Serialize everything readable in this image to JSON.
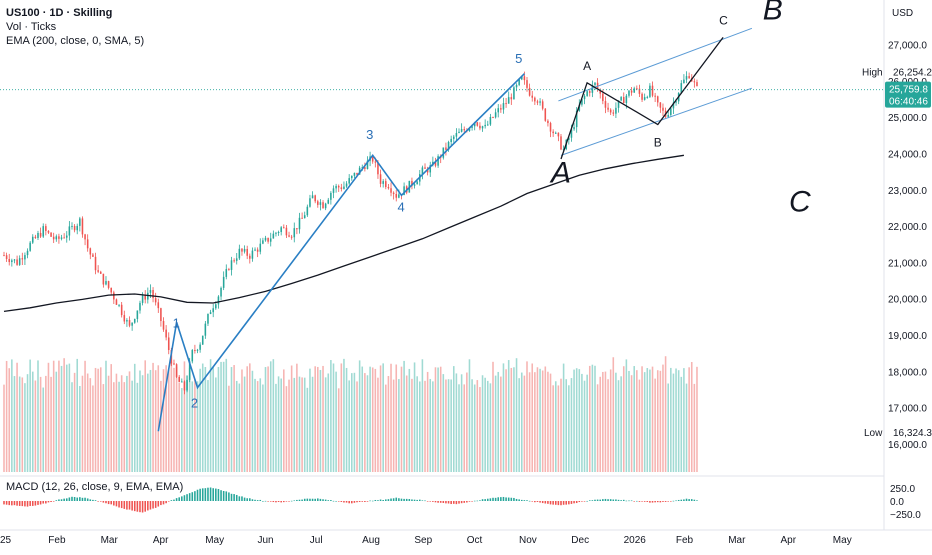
{
  "chart_data": {
    "type": "candlestick",
    "symbol_title": "US100 · 1D · Skilling",
    "volume_legend": "Vol · Ticks",
    "ema_legend": "EMA (200, close, 0, SMA, 5)",
    "macd_legend": "MACD (12, 26, close, 9, EMA, EMA)",
    "currency": "USD",
    "price_range": [
      15500,
      27900
    ],
    "price_ticks": [
      "27,000.0",
      "26,000.0",
      "25,000.0",
      "24,000.0",
      "23,000.0",
      "22,000.0",
      "21,000.0",
      "20,000.0",
      "19,000.0",
      "18,000.0",
      "17,000.0",
      "16,000.0"
    ],
    "price_tick_values": [
      27000,
      26000,
      25000,
      24000,
      23000,
      22000,
      21000,
      20000,
      19000,
      18000,
      17000,
      16000
    ],
    "macd_ticks": [
      "250.0",
      "0.0",
      "−250.0"
    ],
    "macd_tick_values": [
      250,
      0,
      -250
    ],
    "time_labels": [
      "25",
      "Feb",
      "Mar",
      "Apr",
      "May",
      "Jun",
      "Jul",
      "Aug",
      "Sep",
      "Oct",
      "Nov",
      "Dec",
      "2026",
      "Feb",
      "Mar",
      "Apr",
      "May"
    ],
    "time_label_months": [
      0,
      1,
      2,
      3,
      4,
      5,
      6,
      7,
      8,
      9,
      10,
      11,
      12,
      13,
      14,
      15,
      16
    ],
    "high_label": "High",
    "high_value": "26,254.2",
    "low_label": "Low",
    "low_value": "16,324.3",
    "last_price": "25,759.8",
    "countdown": "06:40:46",
    "price_path": [
      [
        0.0,
        21200
      ],
      [
        0.25,
        21000
      ],
      [
        0.5,
        21500
      ],
      [
        0.75,
        21900
      ],
      [
        1.0,
        21600
      ],
      [
        1.2,
        21800
      ],
      [
        1.45,
        22150
      ],
      [
        1.6,
        21400
      ],
      [
        1.8,
        20700
      ],
      [
        2.0,
        20300
      ],
      [
        2.2,
        19800
      ],
      [
        2.4,
        19200
      ],
      [
        2.6,
        19900
      ],
      [
        2.8,
        20250
      ],
      [
        3.0,
        19400
      ],
      [
        3.15,
        18600
      ],
      [
        3.3,
        17800
      ],
      [
        3.45,
        17500
      ],
      [
        3.6,
        18500
      ],
      [
        3.75,
        18800
      ],
      [
        3.95,
        19700
      ],
      [
        4.1,
        20100
      ],
      [
        4.3,
        20900
      ],
      [
        4.5,
        21300
      ],
      [
        4.7,
        21200
      ],
      [
        4.9,
        21450
      ],
      [
        5.1,
        21700
      ],
      [
        5.3,
        21950
      ],
      [
        5.5,
        21800
      ],
      [
        5.7,
        22200
      ],
      [
        5.9,
        22800
      ],
      [
        6.1,
        22600
      ],
      [
        6.3,
        23050
      ],
      [
        6.5,
        23100
      ],
      [
        6.7,
        23400
      ],
      [
        6.9,
        23700
      ],
      [
        7.05,
        23850
      ],
      [
        7.2,
        23250
      ],
      [
        7.35,
        23150
      ],
      [
        7.5,
        22850
      ],
      [
        7.7,
        23050
      ],
      [
        7.85,
        23250
      ],
      [
        8.0,
        23500
      ],
      [
        8.2,
        23650
      ],
      [
        8.4,
        24050
      ],
      [
        8.6,
        24450
      ],
      [
        8.8,
        24650
      ],
      [
        9.0,
        24900
      ],
      [
        9.2,
        24700
      ],
      [
        9.4,
        25100
      ],
      [
        9.6,
        25400
      ],
      [
        9.75,
        25700
      ],
      [
        9.9,
        26050
      ],
      [
        10.05,
        25700
      ],
      [
        10.2,
        25500
      ],
      [
        10.35,
        25000
      ],
      [
        10.5,
        24600
      ],
      [
        10.7,
        24100
      ],
      [
        10.85,
        24600
      ],
      [
        11.0,
        25300
      ],
      [
        11.15,
        25700
      ],
      [
        11.3,
        25900
      ],
      [
        11.45,
        25500
      ],
      [
        11.6,
        25100
      ],
      [
        11.75,
        25350
      ],
      [
        11.9,
        25600
      ],
      [
        12.05,
        25800
      ],
      [
        12.2,
        25550
      ],
      [
        12.35,
        25750
      ],
      [
        12.5,
        25300
      ],
      [
        12.65,
        25050
      ],
      [
        12.8,
        25400
      ],
      [
        12.95,
        25900
      ],
      [
        13.1,
        26200
      ],
      [
        13.25,
        25760
      ]
    ],
    "ema200_path": [
      [
        0.0,
        19650
      ],
      [
        0.5,
        19750
      ],
      [
        1.0,
        19880
      ],
      [
        1.5,
        19980
      ],
      [
        2.0,
        20100
      ],
      [
        2.5,
        20130
      ],
      [
        3.0,
        20050
      ],
      [
        3.5,
        19900
      ],
      [
        4.0,
        19880
      ],
      [
        4.5,
        20030
      ],
      [
        5.0,
        20200
      ],
      [
        5.5,
        20420
      ],
      [
        6.0,
        20650
      ],
      [
        6.5,
        20900
      ],
      [
        7.0,
        21150
      ],
      [
        7.5,
        21400
      ],
      [
        8.0,
        21650
      ],
      [
        8.5,
        21950
      ],
      [
        9.0,
        22250
      ],
      [
        9.5,
        22550
      ],
      [
        10.0,
        22900
      ],
      [
        10.5,
        23150
      ],
      [
        11.0,
        23400
      ],
      [
        11.5,
        23580
      ],
      [
        12.0,
        23720
      ],
      [
        12.5,
        23840
      ],
      [
        13.0,
        23950
      ]
    ],
    "waves_primary": [
      {
        "label": "1",
        "t": 3.3,
        "p": 19200,
        "at_t": 3.3,
        "at_p": 19350
      },
      {
        "label": "2",
        "t": 3.65,
        "p": 17000,
        "at_t": 3.7,
        "at_p": 17550
      },
      {
        "label": "3",
        "t": 7.0,
        "p": 24400,
        "at_t": 7.05,
        "at_p": 23950
      },
      {
        "label": "4",
        "t": 7.6,
        "p": 22400,
        "at_t": 7.6,
        "at_p": 22850
      },
      {
        "label": "5",
        "t": 9.85,
        "p": 26500,
        "at_t": 9.95,
        "at_p": 26200
      }
    ],
    "wave_lines": [
      [
        2.95,
        16350
      ],
      [
        3.3,
        19350
      ],
      [
        3.7,
        17550
      ],
      [
        7.05,
        23950
      ],
      [
        7.6,
        22850
      ],
      [
        9.95,
        26200
      ]
    ],
    "corrective_lines": [
      [
        10.65,
        23850
      ],
      [
        11.15,
        25950
      ],
      [
        12.5,
        24800
      ],
      [
        13.75,
        27200
      ]
    ],
    "corrective_labels": [
      {
        "label": "A",
        "t": 11.15,
        "p": 26300,
        "kind": "small"
      },
      {
        "label": "B",
        "t": 12.5,
        "p": 24200,
        "kind": "small"
      },
      {
        "label": "C",
        "t": 13.75,
        "p": 27550,
        "kind": "small"
      },
      {
        "label": "A",
        "t": 10.65,
        "p": 23200,
        "kind": "big"
      },
      {
        "label": "B",
        "t": 14.7,
        "p": 27700,
        "kind": "big"
      },
      {
        "label": "C",
        "t": 15.2,
        "p": 22400,
        "kind": "big"
      }
    ],
    "channel_upper": [
      [
        10.6,
        25450
      ],
      [
        14.3,
        27450
      ]
    ],
    "channel_lower": [
      [
        10.65,
        23950
      ],
      [
        14.3,
        25800
      ]
    ],
    "volume_profile": [
      0.62,
      0.7,
      0.55,
      0.8,
      0.66,
      0.74,
      0.6,
      0.72,
      0.58,
      0.68,
      0.76,
      0.63,
      0.7,
      0.82,
      0.66,
      0.6,
      0.74,
      0.69,
      0.58,
      0.77,
      0.65,
      0.7,
      0.62,
      0.79,
      0.68,
      0.73,
      0.6,
      0.66,
      0.71,
      0.64
    ],
    "macd_profile": [
      -60,
      -90,
      -110,
      -80,
      -20,
      40,
      80,
      60,
      10,
      -50,
      -120,
      -180,
      -220,
      -140,
      -40,
      60,
      150,
      230,
      260,
      200,
      120,
      60,
      20,
      -10,
      -30,
      10,
      40,
      50,
      20,
      -10,
      -40,
      -20,
      10,
      30,
      60,
      40,
      20,
      -10,
      -40,
      -60,
      -30,
      10,
      50,
      80,
      60,
      20,
      -20,
      -50,
      -80,
      -60,
      -20,
      20,
      40,
      30,
      10,
      -10,
      -30,
      -20,
      10,
      40,
      20
    ]
  }
}
